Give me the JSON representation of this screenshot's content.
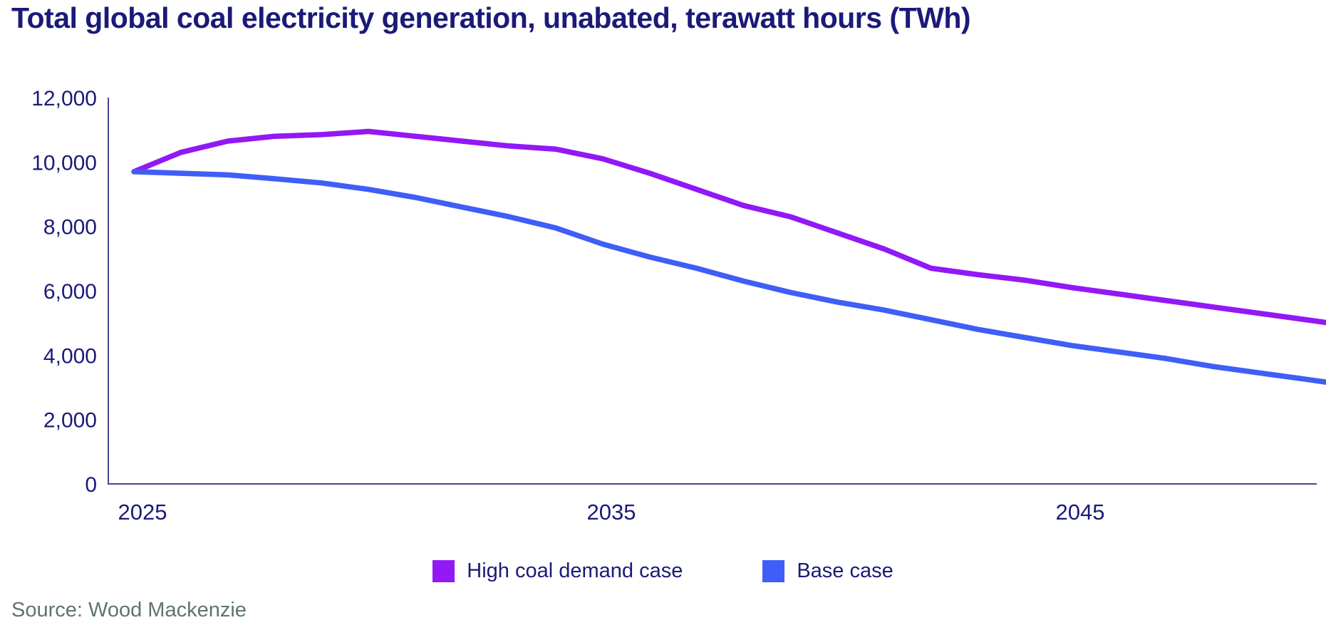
{
  "title": "Total global coal electricity generation, unabated, terawatt hours (TWh)",
  "source": "Source: Wood Mackenzie",
  "colors": {
    "title_navy": "#1b1a78",
    "axis_line": "#44449b",
    "tick_text": "#1b1a78",
    "high_coal_purple": "#9218f5",
    "base_blue": "#3f5ef7",
    "source_gray": "#5f7470",
    "background": "#ffffff"
  },
  "legend": {
    "items": [
      {
        "label": "High coal demand case",
        "color": "#9218f5"
      },
      {
        "label": "Base case",
        "color": "#3f5ef7"
      }
    ]
  },
  "chart_data": {
    "type": "line",
    "title": "Total global coal electricity generation, unabated, terawatt hours (TWh)",
    "xlabel": "",
    "ylabel": "",
    "grid": false,
    "legend_position": "bottom",
    "ylim": [
      0,
      12000
    ],
    "yticks": [
      0,
      2000,
      4000,
      6000,
      8000,
      10000,
      12000
    ],
    "ytick_labels": [
      "0",
      "2,000",
      "4,000",
      "6,000",
      "8,000",
      "10,000",
      "12,000"
    ],
    "xticks": [
      2025,
      2035,
      2045
    ],
    "xtick_labels": [
      "2025",
      "2035",
      "2045"
    ],
    "x": [
      2025,
      2026,
      2027,
      2028,
      2029,
      2030,
      2031,
      2032,
      2033,
      2034,
      2035,
      2036,
      2037,
      2038,
      2039,
      2040,
      2041,
      2042,
      2043,
      2044,
      2045,
      2046,
      2047,
      2048,
      2049,
      2050
    ],
    "series": [
      {
        "name": "High coal demand case",
        "color": "#9218f5",
        "values": [
          9700,
          10300,
          10650,
          10800,
          10850,
          10950,
          10800,
          10650,
          10500,
          10400,
          10100,
          9650,
          9150,
          8650,
          8300,
          7800,
          7300,
          6700,
          6500,
          6330,
          6100,
          5900,
          5700,
          5500,
          5300,
          5100
        ]
      },
      {
        "name": "Base case",
        "color": "#3f5ef7",
        "values": [
          9700,
          9650,
          9600,
          9480,
          9350,
          9150,
          8900,
          8600,
          8300,
          7950,
          7450,
          7050,
          6700,
          6300,
          5950,
          5650,
          5400,
          5100,
          4800,
          4550,
          4300,
          4100,
          3900,
          3650,
          3450,
          3250
        ]
      }
    ]
  }
}
